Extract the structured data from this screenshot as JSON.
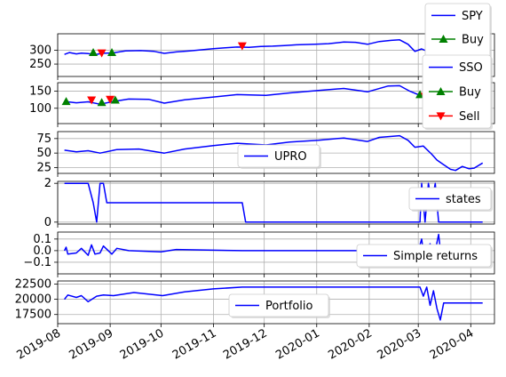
{
  "colors": {
    "line": "#0000ff",
    "buy": "#008000",
    "sell": "#ff0000",
    "grid": "#b0b0b0",
    "legend_border": "#cccccc"
  },
  "shared_x": {
    "start": "2019-08-01",
    "end": "2020-04-15",
    "ticks": [
      "2019-08",
      "2019-09",
      "2019-10",
      "2019-11",
      "2019-12",
      "2020-01",
      "2020-02",
      "2020-03",
      "2020-04"
    ],
    "tick_dates": [
      "2019-08-01",
      "2019-09-01",
      "2019-10-01",
      "2019-11-01",
      "2019-12-01",
      "2020-01-01",
      "2020-02-01",
      "2020-03-01",
      "2020-04-01"
    ]
  },
  "chart_data": [
    {
      "type": "line",
      "legend": "top-right",
      "ylim": [
        205,
        360
      ],
      "yticks": [
        250,
        300
      ],
      "ytick_labels": [
        "250",
        "300"
      ],
      "series": [
        {
          "name": "SPY",
          "kind": "line",
          "points": [
            [
              "2019-08-05",
              285
            ],
            [
              "2019-08-08",
              292
            ],
            [
              "2019-08-12",
              287
            ],
            [
              "2019-08-15",
              290
            ],
            [
              "2019-08-19",
              288
            ],
            [
              "2019-08-23",
              284
            ],
            [
              "2019-08-27",
              289
            ],
            [
              "2019-09-03",
              291
            ],
            [
              "2019-09-10",
              298
            ],
            [
              "2019-09-19",
              299
            ],
            [
              "2019-09-27",
              296
            ],
            [
              "2019-10-03",
              289
            ],
            [
              "2019-10-10",
              294
            ],
            [
              "2019-10-18",
              298
            ],
            [
              "2019-10-25",
              302
            ],
            [
              "2019-11-01",
              306
            ],
            [
              "2019-11-08",
              309
            ],
            [
              "2019-11-15",
              312
            ],
            [
              "2019-11-22",
              311
            ],
            [
              "2019-11-29",
              314
            ],
            [
              "2019-12-06",
              315
            ],
            [
              "2019-12-13",
              317
            ],
            [
              "2019-12-20",
              320
            ],
            [
              "2019-12-31",
              322
            ],
            [
              "2020-01-08",
              324
            ],
            [
              "2020-01-17",
              330
            ],
            [
              "2020-01-24",
              329
            ],
            [
              "2020-01-31",
              322
            ],
            [
              "2020-02-07",
              332
            ],
            [
              "2020-02-14",
              336
            ],
            [
              "2020-02-19",
              338
            ],
            [
              "2020-02-24",
              322
            ],
            [
              "2020-02-28",
              296
            ],
            [
              "2020-03-03",
              305
            ],
            [
              "2020-03-06",
              297
            ],
            [
              "2020-03-09",
              275
            ],
            [
              "2020-03-12",
              248
            ],
            [
              "2020-03-16",
              238
            ],
            [
              "2020-03-20",
              229
            ],
            [
              "2020-03-23",
              222
            ],
            [
              "2020-03-27",
              253
            ],
            [
              "2020-04-01",
              247
            ],
            [
              "2020-04-08",
              275
            ]
          ]
        },
        {
          "name": "Buy",
          "kind": "marker",
          "marker": "^",
          "points": [
            [
              "2019-08-22",
              292
            ],
            [
              "2019-09-02",
              292
            ]
          ]
        },
        {
          "name": "Sell",
          "kind": "marker",
          "marker": "v",
          "points": [
            [
              "2019-08-27",
              290
            ],
            [
              "2019-11-18",
              316
            ]
          ]
        }
      ]
    },
    {
      "type": "line",
      "legend": "top-right",
      "ylim": [
        55,
        175
      ],
      "yticks": [
        100,
        150
      ],
      "ytick_labels": [
        "100",
        "150"
      ],
      "series": [
        {
          "name": "SSO",
          "kind": "line",
          "points": [
            [
              "2019-08-05",
              120
            ],
            [
              "2019-08-12",
              116
            ],
            [
              "2019-08-19",
              119
            ],
            [
              "2019-08-26",
              112
            ],
            [
              "2019-09-03",
              120
            ],
            [
              "2019-09-12",
              127
            ],
            [
              "2019-09-24",
              126
            ],
            [
              "2019-10-03",
              115
            ],
            [
              "2019-10-15",
              125
            ],
            [
              "2019-11-01",
              133
            ],
            [
              "2019-11-15",
              140
            ],
            [
              "2019-12-02",
              138
            ],
            [
              "2019-12-16",
              145
            ],
            [
              "2020-01-02",
              152
            ],
            [
              "2020-01-17",
              158
            ],
            [
              "2020-01-31",
              148
            ],
            [
              "2020-02-12",
              165
            ],
            [
              "2020-02-19",
              166
            ],
            [
              "2020-02-25",
              150
            ],
            [
              "2020-03-03",
              136
            ],
            [
              "2020-03-09",
              118
            ],
            [
              "2020-03-12",
              100
            ],
            [
              "2020-03-16",
              88
            ],
            [
              "2020-03-20",
              74
            ],
            [
              "2020-03-23",
              68
            ],
            [
              "2020-03-27",
              86
            ],
            [
              "2020-04-01",
              82
            ]
          ]
        },
        {
          "name": "Buy",
          "kind": "marker",
          "marker": "^",
          "points": [
            [
              "2019-08-06",
              120
            ],
            [
              "2019-08-27",
              117
            ],
            [
              "2019-09-04",
              124
            ],
            [
              "2020-03-02",
              140
            ]
          ]
        },
        {
          "name": "Sell",
          "kind": "marker",
          "marker": "v",
          "points": [
            [
              "2019-08-21",
              124
            ],
            [
              "2019-09-01",
              126
            ],
            [
              "2020-03-05",
              135
            ]
          ]
        }
      ]
    },
    {
      "type": "line",
      "legend": "center",
      "ylim": [
        15,
        87
      ],
      "yticks": [
        25,
        50,
        75
      ],
      "ytick_labels": [
        "25",
        "50",
        "75"
      ],
      "series": [
        {
          "name": "UPRO",
          "kind": "line",
          "points": [
            [
              "2019-08-05",
              55
            ],
            [
              "2019-08-12",
              52
            ],
            [
              "2019-08-19",
              54
            ],
            [
              "2019-08-26",
              50
            ],
            [
              "2019-09-05",
              56
            ],
            [
              "2019-09-18",
              57
            ],
            [
              "2019-10-03",
              50
            ],
            [
              "2019-10-15",
              57
            ],
            [
              "2019-11-01",
              63
            ],
            [
              "2019-11-15",
              67
            ],
            [
              "2019-12-02",
              64
            ],
            [
              "2019-12-16",
              69
            ],
            [
              "2020-01-02",
              72
            ],
            [
              "2020-01-17",
              76
            ],
            [
              "2020-01-31",
              70
            ],
            [
              "2020-02-07",
              77
            ],
            [
              "2020-02-19",
              80
            ],
            [
              "2020-02-24",
              72
            ],
            [
              "2020-02-28",
              60
            ],
            [
              "2020-03-04",
              62
            ],
            [
              "2020-03-09",
              48
            ],
            [
              "2020-03-12",
              38
            ],
            [
              "2020-03-16",
              30
            ],
            [
              "2020-03-20",
              22
            ],
            [
              "2020-03-23",
              20
            ],
            [
              "2020-03-27",
              27
            ],
            [
              "2020-03-31",
              23
            ],
            [
              "2020-04-03",
              24
            ],
            [
              "2020-04-08",
              33
            ]
          ]
        }
      ]
    },
    {
      "type": "line",
      "legend": "right",
      "ylim": [
        -0.1,
        2.1
      ],
      "yticks": [
        0,
        2
      ],
      "ytick_labels": [
        "0",
        "2"
      ],
      "series": [
        {
          "name": "states",
          "kind": "line",
          "points": [
            [
              "2019-08-05",
              2
            ],
            [
              "2019-08-19",
              2
            ],
            [
              "2019-08-22",
              1
            ],
            [
              "2019-08-24",
              0
            ],
            [
              "2019-08-26",
              2
            ],
            [
              "2019-08-28",
              2
            ],
            [
              "2019-08-30",
              1
            ],
            [
              "2019-11-18",
              1
            ],
            [
              "2019-11-20",
              0
            ],
            [
              "2020-03-02",
              0
            ],
            [
              "2020-03-03",
              2
            ],
            [
              "2020-03-05",
              0
            ],
            [
              "2020-03-07",
              2
            ],
            [
              "2020-03-09",
              1
            ],
            [
              "2020-03-11",
              2
            ],
            [
              "2020-03-13",
              0
            ],
            [
              "2020-04-08",
              0
            ]
          ]
        }
      ]
    },
    {
      "type": "line",
      "legend": "right",
      "ylim": [
        -0.2,
        0.16
      ],
      "yticks": [
        -0.1,
        0.0,
        0.1
      ],
      "ytick_labels": [
        "−0.1",
        "0.0",
        "0.1"
      ],
      "series": [
        {
          "name": "Simple returns",
          "kind": "line",
          "points": [
            [
              "2019-08-05",
              0.0
            ],
            [
              "2019-08-06",
              0.03
            ],
            [
              "2019-08-07",
              -0.03
            ],
            [
              "2019-08-12",
              -0.02
            ],
            [
              "2019-08-15",
              0.02
            ],
            [
              "2019-08-19",
              -0.04
            ],
            [
              "2019-08-21",
              0.05
            ],
            [
              "2019-08-23",
              -0.03
            ],
            [
              "2019-08-26",
              -0.02
            ],
            [
              "2019-08-28",
              0.04
            ],
            [
              "2019-09-02",
              -0.03
            ],
            [
              "2019-09-05",
              0.02
            ],
            [
              "2019-09-12",
              0.0
            ],
            [
              "2019-10-01",
              -0.01
            ],
            [
              "2019-10-10",
              0.01
            ],
            [
              "2019-11-18",
              0.0
            ],
            [
              "2020-03-01",
              0.0
            ],
            [
              "2020-03-03",
              0.1
            ],
            [
              "2020-03-05",
              -0.12
            ],
            [
              "2020-03-08",
              0.06
            ],
            [
              "2020-03-10",
              -0.08
            ],
            [
              "2020-03-13",
              0.14
            ],
            [
              "2020-03-15",
              -0.12
            ],
            [
              "2020-03-17",
              0.0
            ],
            [
              "2020-04-08",
              0.0
            ]
          ]
        }
      ]
    },
    {
      "type": "line",
      "legend": "center",
      "ylim": [
        16000,
        23000
      ],
      "yticks": [
        17500,
        20000,
        22500
      ],
      "ytick_labels": [
        "17500",
        "20000",
        "22500"
      ],
      "series": [
        {
          "name": "Portfolio",
          "kind": "line",
          "points": [
            [
              "2019-08-05",
              20000
            ],
            [
              "2019-08-07",
              20700
            ],
            [
              "2019-08-12",
              20300
            ],
            [
              "2019-08-15",
              20600
            ],
            [
              "2019-08-19",
              19600
            ],
            [
              "2019-08-24",
              20500
            ],
            [
              "2019-08-28",
              20700
            ],
            [
              "2019-09-03",
              20600
            ],
            [
              "2019-09-15",
              21100
            ],
            [
              "2019-10-02",
              20600
            ],
            [
              "2019-10-15",
              21200
            ],
            [
              "2019-11-01",
              21700
            ],
            [
              "2019-11-18",
              22000
            ],
            [
              "2020-03-01",
              22000
            ],
            [
              "2020-03-02",
              22000
            ],
            [
              "2020-03-04",
              20500
            ],
            [
              "2020-03-06",
              22000
            ],
            [
              "2020-03-08",
              19000
            ],
            [
              "2020-03-10",
              21400
            ],
            [
              "2020-03-12",
              18500
            ],
            [
              "2020-03-14",
              16600
            ],
            [
              "2020-03-16",
              19400
            ],
            [
              "2020-04-08",
              19400
            ]
          ]
        }
      ]
    }
  ]
}
